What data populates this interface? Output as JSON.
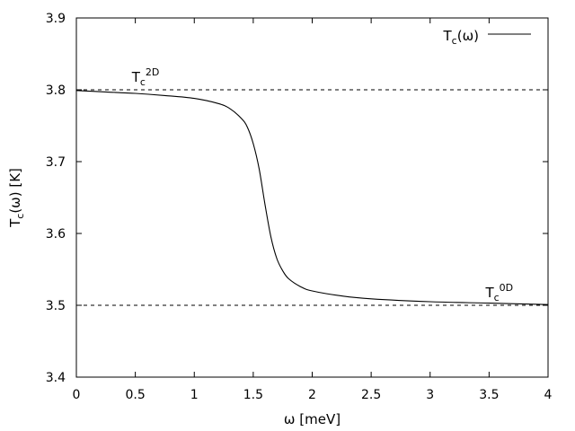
{
  "chart_data": {
    "type": "line",
    "title": "",
    "xlabel": "ω [meV]",
    "ylabel": "Tc(ω) [K]",
    "xlim": [
      0,
      4
    ],
    "ylim": [
      3.4,
      3.9
    ],
    "x_ticks": [
      "0",
      "0.5",
      "1",
      "1.5",
      "2",
      "2.5",
      "3",
      "3.5",
      "4"
    ],
    "y_ticks": [
      "3.4",
      "3.5",
      "3.6",
      "3.7",
      "3.8",
      "3.9"
    ],
    "grid": false,
    "legend": {
      "position": "top-right",
      "entries": [
        "Tc(ω)"
      ]
    },
    "series": [
      {
        "name": "Tc(ω)",
        "style": "solid",
        "x": [
          0,
          0.25,
          0.5,
          0.75,
          1.0,
          1.2,
          1.3,
          1.4,
          1.45,
          1.5,
          1.55,
          1.6,
          1.65,
          1.7,
          1.75,
          1.8,
          1.9,
          2.0,
          2.25,
          2.5,
          3.0,
          3.5,
          4.0
        ],
        "y": [
          3.799,
          3.797,
          3.795,
          3.792,
          3.788,
          3.781,
          3.774,
          3.76,
          3.748,
          3.725,
          3.69,
          3.64,
          3.595,
          3.565,
          3.548,
          3.537,
          3.526,
          3.52,
          3.513,
          3.509,
          3.505,
          3.503,
          3.501
        ]
      }
    ],
    "reference_lines": [
      {
        "y": 3.8,
        "style": "dashed",
        "label_base": "T",
        "label_sub": "c",
        "label_sup": "2D",
        "label_x": 0.47
      },
      {
        "y": 3.5,
        "style": "dashed",
        "label_base": "T",
        "label_sub": "c",
        "label_sup": "0D",
        "label_x": 3.47
      }
    ]
  }
}
